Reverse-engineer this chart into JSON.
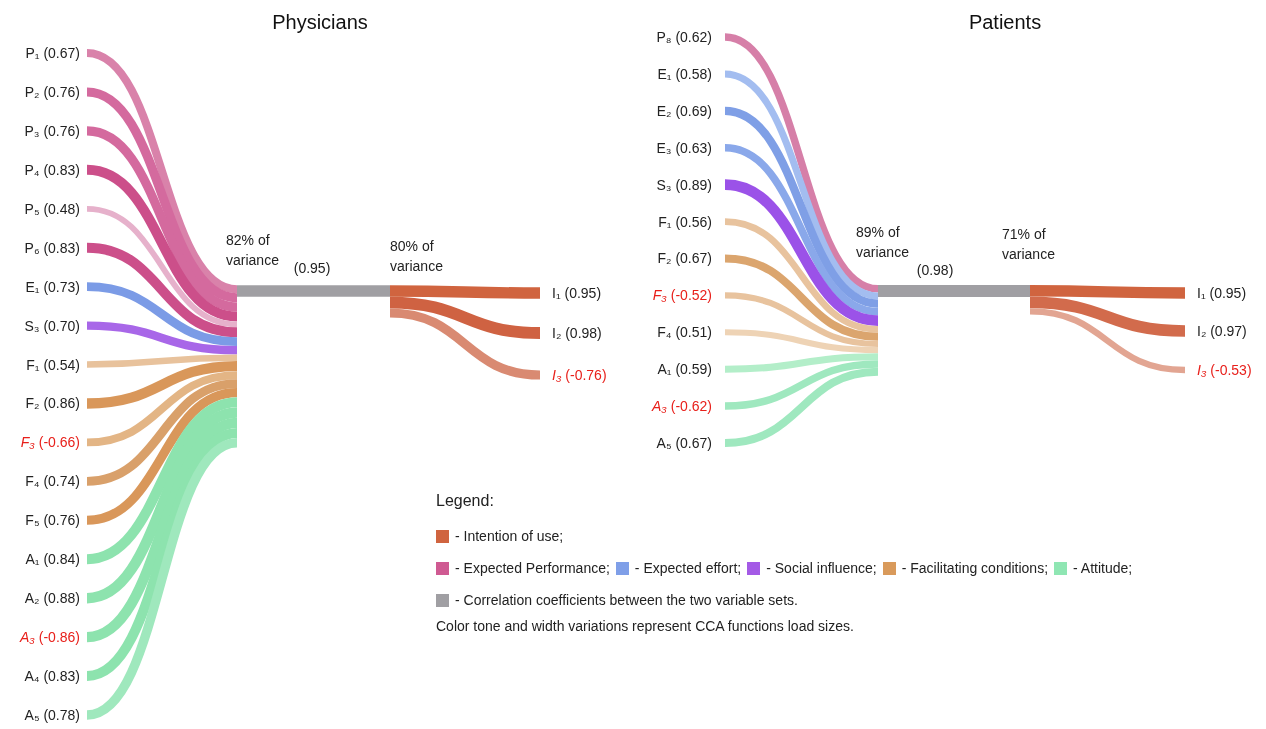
{
  "chart_data": [
    {
      "type": "other",
      "title": "Physicians",
      "annotations": [
        "82% of variance"
      ],
      "categories": [
        "P₁",
        "P₂",
        "P₃",
        "P₄",
        "P₅",
        "P₆",
        "E₁",
        "S₃",
        "F₁",
        "F₂",
        "F₃",
        "F₄",
        "F₅",
        "A₁",
        "A₂",
        "A₃",
        "A₄",
        "A₅"
      ],
      "values": [
        0.67,
        0.76,
        0.76,
        0.83,
        0.48,
        0.83,
        0.73,
        0.7,
        0.54,
        0.86,
        -0.66,
        0.74,
        0.76,
        0.84,
        0.88,
        -0.86,
        0.83,
        0.78
      ],
      "value_labels": [
        "(0.67)",
        "(0.76)",
        "(0.76)",
        "(0.83)",
        "(0.48)",
        "(0.83)",
        "(0.73)",
        "(0.70)",
        "(0.54)",
        "(0.86)",
        "(-0.66)",
        "(0.74)",
        "(0.76)",
        "(0.84)",
        "(0.88)",
        "(-0.86)",
        "(0.83)",
        "(0.78)"
      ],
      "colors": [
        "#d982aa",
        "#d46a9e",
        "#d46a9e",
        "#cc4f8a",
        "#e6b1cb",
        "#cc4f8a",
        "#7b9be6",
        "#a867e8",
        "#e8c29c",
        "#d9975a",
        "#e3b585",
        "#d9a06a",
        "#d9975a",
        "#8de3ae",
        "#8de3ae",
        "#8de3ae",
        "#8de3ae",
        "#9fe8bd"
      ]
    },
    {
      "type": "other",
      "categories": [
        null
      ],
      "values": [
        0.95
      ],
      "value_labels": [
        "(0.95)"
      ],
      "colors": [
        "#a09fa3"
      ]
    },
    {
      "type": "other",
      "annotations": [
        "80% of variance"
      ],
      "categories": [
        "I₁",
        "I₂",
        "I₃"
      ],
      "values": [
        0.95,
        0.98,
        -0.76
      ],
      "value_labels": [
        "(0.95)",
        "(0.98)",
        "(-0.76)"
      ],
      "colors": [
        "#d0643f",
        "#cf6242",
        "#d98a72"
      ]
    },
    {
      "type": "other",
      "title": "Patients",
      "annotations": [
        "89% of variance"
      ],
      "categories": [
        "P₈",
        "E₁",
        "E₂",
        "E₃",
        "S₃",
        "F₁",
        "F₂",
        "F₃",
        "F₄",
        "A₁",
        "A₃",
        "A₅"
      ],
      "values": [
        0.62,
        0.58,
        0.69,
        0.63,
        0.89,
        0.56,
        0.67,
        -0.52,
        0.51,
        0.59,
        -0.62,
        0.67
      ],
      "value_labels": [
        "(0.62)",
        "(0.58)",
        "(0.69)",
        "(0.63)",
        "(0.89)",
        "(0.56)",
        "(0.67)",
        "(-0.52)",
        "(0.51)",
        "(0.59)",
        "(-0.62)",
        "(0.67)"
      ],
      "colors": [
        "#d67fa8",
        "#a3bdf0",
        "#7f9fe6",
        "#8aa8ea",
        "#9b52e8",
        "#e8c39e",
        "#dba56e",
        "#e8c39e",
        "#eed3b5",
        "#b3eec9",
        "#9fe8bf",
        "#9fe8bf"
      ]
    },
    {
      "type": "other",
      "categories": [
        null
      ],
      "values": [
        0.98
      ],
      "value_labels": [
        "(0.98)"
      ],
      "colors": [
        "#a09fa3"
      ]
    },
    {
      "type": "other",
      "annotations": [
        "71% of variance"
      ],
      "categories": [
        "I₁",
        "I₂",
        "I₃"
      ],
      "values": [
        0.95,
        0.97,
        -0.53
      ],
      "value_labels": [
        "(0.95)",
        "(0.97)",
        "(-0.53)"
      ],
      "colors": [
        "#d0643f",
        "#d26b4c",
        "#e2a592"
      ]
    },
    {
      "type": "other",
      "legend_title": "Legend:",
      "annotations": [
        "Color tone and width variations represent CCA functions load sizes."
      ],
      "series": [
        {
          "name": "- Intention of use;",
          "color": "#d0643f"
        },
        {
          "name": "- Expected Performance;",
          "color": "#cf5a92"
        },
        {
          "name": "- Expected effort;",
          "color": "#7f9fe8"
        },
        {
          "name": "- Social influence;",
          "color": "#a45ae6"
        },
        {
          "name": "- Facilitating conditions;",
          "color": "#d99a5b"
        },
        {
          "name": "- Attitude;",
          "color": "#8fe6b3"
        },
        {
          "name": "- Correlation coefficients between the two variable sets.",
          "color": "#a09fa3"
        }
      ]
    }
  ]
}
